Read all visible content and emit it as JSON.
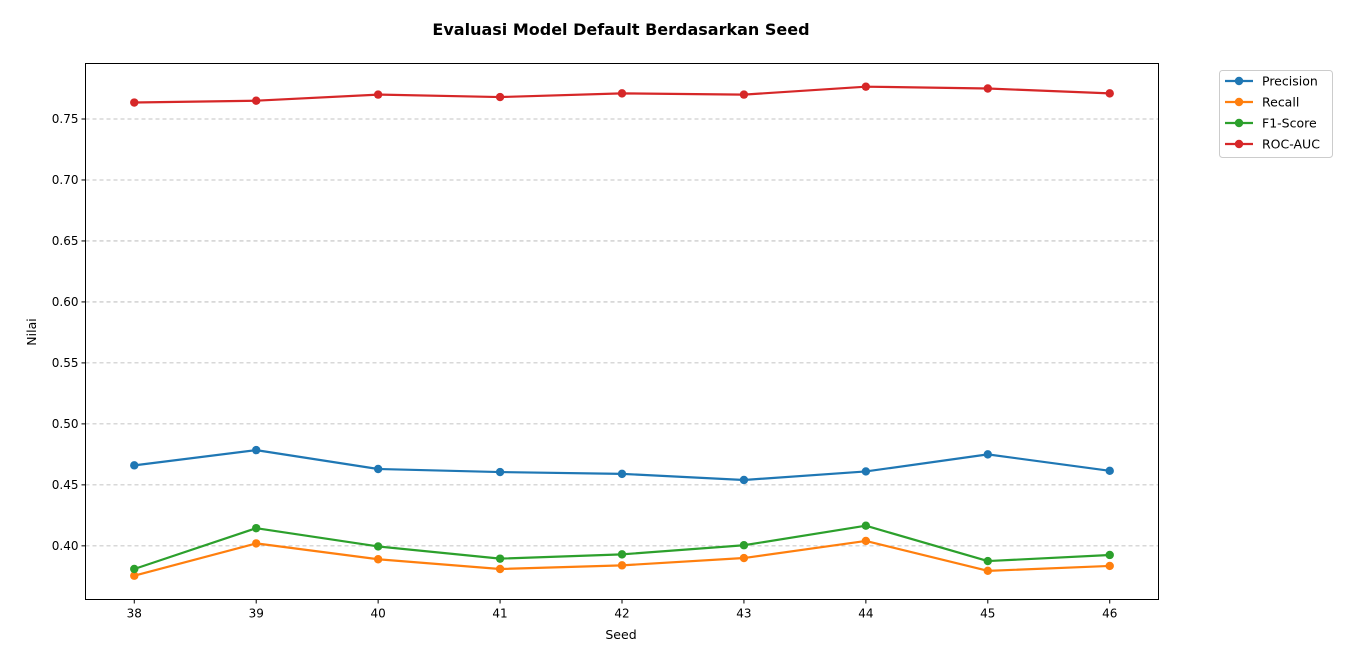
{
  "chart_data": {
    "type": "line",
    "title": "Evaluasi Model Default Berdasarkan Seed",
    "xlabel": "Seed",
    "ylabel": "Nilai",
    "x": [
      38,
      39,
      40,
      41,
      42,
      43,
      44,
      45,
      46
    ],
    "xlim": [
      37.6,
      46.4
    ],
    "ylim": [
      0.356,
      0.7955
    ],
    "yticks": [
      "0.40",
      "0.45",
      "0.50",
      "0.55",
      "0.60",
      "0.65",
      "0.70",
      "0.75"
    ],
    "grid": "y-dashed",
    "legend_position": "outside-top-right",
    "series": [
      {
        "name": "Precision",
        "color": "#1f77b4",
        "values": [
          0.466,
          0.4785,
          0.463,
          0.4605,
          0.459,
          0.454,
          0.461,
          0.475,
          0.4615
        ]
      },
      {
        "name": "Recall",
        "color": "#ff7f0e",
        "values": [
          0.3755,
          0.402,
          0.389,
          0.381,
          0.384,
          0.39,
          0.404,
          0.3795,
          0.3835
        ]
      },
      {
        "name": "F1-Score",
        "color": "#2ca02c",
        "values": [
          0.381,
          0.4145,
          0.3995,
          0.3895,
          0.393,
          0.4005,
          0.4165,
          0.3875,
          0.3925
        ]
      },
      {
        "name": "ROC-AUC",
        "color": "#d62728",
        "values": [
          0.7635,
          0.765,
          0.77,
          0.768,
          0.771,
          0.77,
          0.7765,
          0.775,
          0.771
        ]
      }
    ]
  }
}
